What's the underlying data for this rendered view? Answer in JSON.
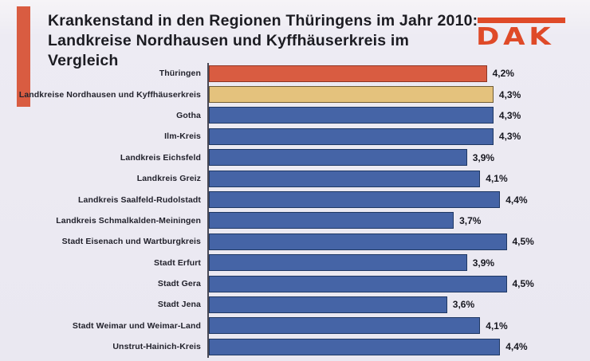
{
  "header": {
    "title_line1": "Krankenstand in den Regionen Thüringens im Jahr 2010:",
    "title_line2": "Landkreise Nordhausen und Kyffhäuserkreis im Vergleich",
    "logo_text": "DAK"
  },
  "colors": {
    "background": "#eceaf2",
    "accent_stripe": "#d95c41",
    "logo": "#df4a28",
    "bar_orange_fill": "#d95c41",
    "bar_orange_border": "#8e3524",
    "bar_yellow_fill": "#e4c27d",
    "bar_yellow_border": "#6e5c35",
    "bar_blue_fill": "#4564a6",
    "bar_blue_border": "#1f3864",
    "axis": "#4a4a56",
    "text": "#1c1c22"
  },
  "chart_data": {
    "type": "bar",
    "orientation": "horizontal",
    "title": "Krankenstand in den Regionen Thüringens im Jahr 2010: Landkreise Nordhausen und Kyffhäuserkreis im Vergleich",
    "xlabel": "",
    "ylabel": "",
    "unit": "%",
    "xlim": [
      0,
      4.5
    ],
    "grid": false,
    "legend": false,
    "value_labels_shown": true,
    "categories": [
      "Thüringen",
      "Landkreise Nordhausen und Kyffhäuserkreis",
      "Gotha",
      "Ilm-Kreis",
      "Landkreis Eichsfeld",
      "Landkreis Greiz",
      "Landkreis Saalfeld-Rudolstadt",
      "Landkreis Schmalkalden-Meiningen",
      "Stadt Eisenach und Wartburgkreis",
      "Stadt Erfurt",
      "Stadt Gera",
      "Stadt Jena",
      "Stadt Weimar und Weimar-Land",
      "Unstrut-Hainich-Kreis"
    ],
    "values": [
      4.2,
      4.3,
      4.3,
      4.3,
      3.9,
      4.1,
      4.4,
      3.7,
      4.5,
      3.9,
      4.5,
      3.6,
      4.1,
      4.4
    ],
    "value_display": [
      "4,2%",
      "4,3%",
      "4,3%",
      "4,3%",
      "3,9%",
      "4,1%",
      "4,4%",
      "3,7%",
      "4,5%",
      "3,9%",
      "4,5%",
      "3,6%",
      "4,1%",
      "4,4%"
    ],
    "bar_color_keys": [
      "orange",
      "yellow",
      "blue",
      "blue",
      "blue",
      "blue",
      "blue",
      "blue",
      "blue",
      "blue",
      "blue",
      "blue",
      "blue",
      "blue"
    ]
  }
}
